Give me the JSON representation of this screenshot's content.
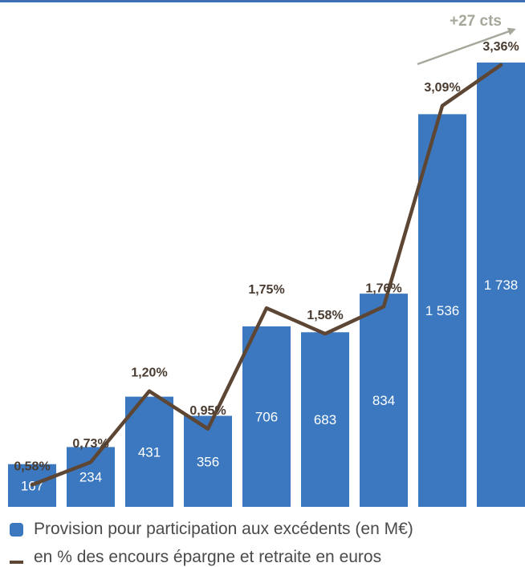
{
  "colors": {
    "bar": "#3b78bf",
    "line": "#5e4634",
    "pct_label": "#4a3b30",
    "trend_arrow": "#a4a89a",
    "top_rule": "#3f6fb5"
  },
  "chart_data": {
    "type": "bar",
    "bar_labels": [
      "167",
      "234",
      "431",
      "356",
      "706",
      "683",
      "834",
      "1 536",
      "1 738"
    ],
    "series": [
      {
        "name": "Provision pour participation aux excédents (en M€)",
        "type": "bar",
        "values": [
          167,
          234,
          431,
          356,
          706,
          683,
          834,
          1536,
          1738
        ]
      },
      {
        "name": "en % des encours épargne et retraite en euros",
        "type": "line",
        "values": [
          0.58,
          0.73,
          1.2,
          0.95,
          1.75,
          1.58,
          1.76,
          3.09,
          3.36
        ],
        "labels": [
          "0,58%",
          "0,73%",
          "1,20%",
          "0,95%",
          "1,75%",
          "1,58%",
          "1,76%",
          "3,09%",
          "3,36%"
        ]
      }
    ],
    "annotation": "+27 cts",
    "legend_position": "bottom",
    "grid": false
  },
  "legend": {
    "bars_label": "Provision pour participation aux excédents (en M€)",
    "line_label": "en % des encours épargne et retraite en euros"
  }
}
